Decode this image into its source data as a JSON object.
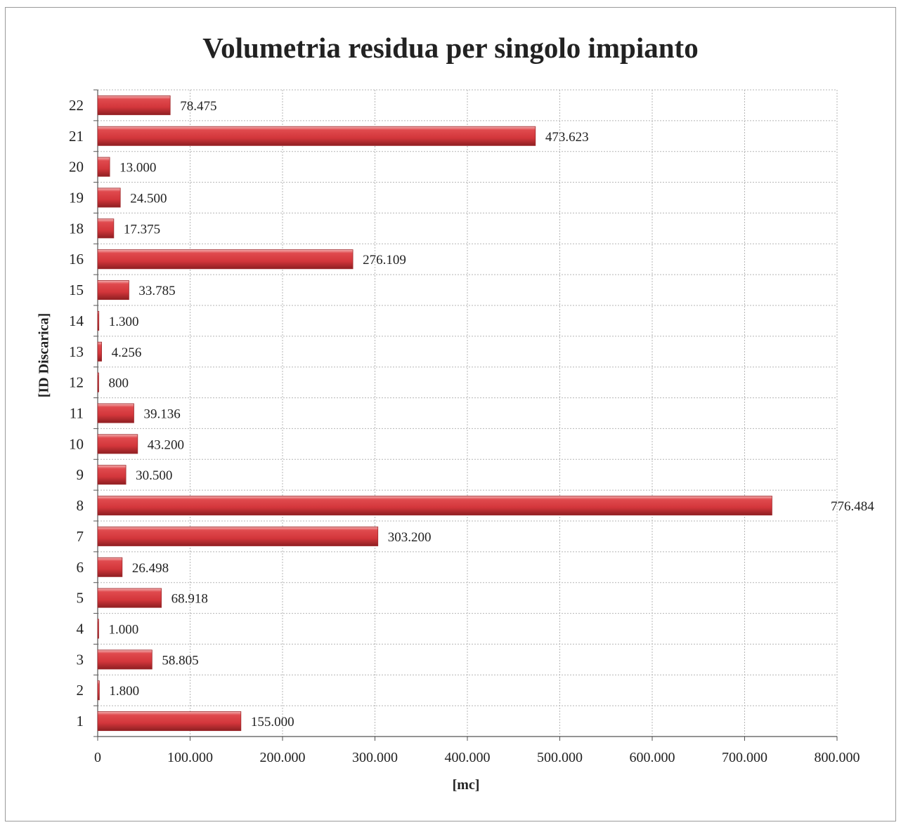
{
  "chart_data": {
    "type": "bar",
    "orientation": "horizontal",
    "title": "Volumetria residua per singolo impianto",
    "xlabel": "[mc]",
    "ylabel": "[ID Discarica]",
    "categories": [
      "1",
      "2",
      "3",
      "4",
      "5",
      "6",
      "7",
      "8",
      "9",
      "10",
      "11",
      "12",
      "13",
      "14",
      "15",
      "16",
      "18",
      "19",
      "20",
      "21",
      "22"
    ],
    "values": [
      155000,
      1800,
      58805,
      1000,
      68918,
      26498,
      303200,
      776484,
      30500,
      43200,
      39136,
      800,
      4256,
      1300,
      33785,
      276109,
      17375,
      24500,
      13000,
      473623,
      78475
    ],
    "data_labels": [
      "155.000",
      "1.800",
      "58.805",
      "1.000",
      "68.918",
      "26.498",
      "303.200",
      "776.484",
      "30.500",
      "43.200",
      "39.136",
      "800",
      "4.256",
      "1.300",
      "33.785",
      "276.109",
      "17.375",
      "24.500",
      "13.000",
      "473.623",
      "78.475"
    ],
    "x_ticks": [
      0,
      100000,
      200000,
      300000,
      400000,
      500000,
      600000,
      700000,
      800000
    ],
    "x_tick_labels": [
      "0",
      "100.000",
      "200.000",
      "300.000",
      "400.000",
      "500.000",
      "600.000",
      "700.000",
      "800.000"
    ],
    "xlim": [
      0,
      800000
    ],
    "grid": true,
    "bar_color": "#d9383e",
    "bar_color_dark": "#8e1f22"
  }
}
